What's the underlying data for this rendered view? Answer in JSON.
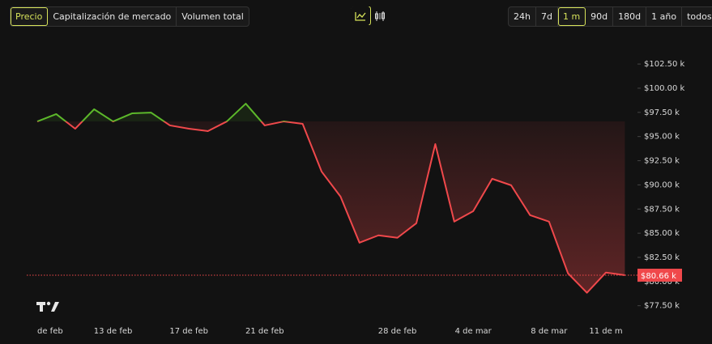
{
  "ui": {
    "tabs": [
      "Precio",
      "Capitalización de mercado",
      "Volumen total"
    ],
    "ranges": [
      "24h",
      "7d",
      "1 m",
      "90d",
      "180d",
      "1 año",
      "todos"
    ]
  },
  "chart_data": {
    "type": "line",
    "categories": [
      "de feb",
      null,
      null,
      null,
      "13 de feb",
      null,
      null,
      null,
      "17 de feb",
      null,
      null,
      null,
      "21 de feb",
      null,
      null,
      null,
      null,
      null,
      null,
      "28 de feb",
      null,
      null,
      null,
      "4 de mar",
      null,
      null,
      null,
      "8 de mar",
      null,
      null,
      "11 de m",
      null
    ],
    "values": [
      96560,
      97320,
      95810,
      97820,
      96560,
      97400,
      97480,
      96150,
      95810,
      95560,
      96560,
      98400,
      96150,
      96560,
      96310,
      91380,
      88790,
      84020,
      84780,
      84530,
      86030,
      94220,
      86200,
      87280,
      90630,
      89960,
      86870,
      86200,
      80850,
      78840,
      80930,
      80660
    ],
    "value_labels": [
      null,
      null,
      null,
      null,
      null,
      null,
      null,
      null,
      null,
      null,
      null,
      null,
      null,
      null,
      null,
      null,
      null,
      null,
      null,
      null,
      null,
      null,
      null,
      null,
      null,
      null,
      null,
      null,
      null,
      null,
      null,
      "$80.66 k"
    ],
    "up_color": "#5cb82a",
    "down_color": "#f0484b",
    "ylim": [
      75800,
      104100
    ],
    "yticks": [
      {
        "value": 77500,
        "label": "$77.50 k"
      },
      {
        "value": 80000,
        "label": "$80.00 k"
      },
      {
        "value": 82500,
        "label": "$82.50 k"
      },
      {
        "value": 85000,
        "label": "$85.00 k"
      },
      {
        "value": 87500,
        "label": "$87.50 k"
      },
      {
        "value": 90000,
        "label": "$90.00 k"
      },
      {
        "value": 92500,
        "label": "$92.50 k"
      },
      {
        "value": 95000,
        "label": "$95.00 k"
      },
      {
        "value": 97500,
        "label": "$97.50 k"
      },
      {
        "value": 100000,
        "label": "$100.00 k"
      },
      {
        "value": 102500,
        "label": "$102.50 k"
      }
    ]
  }
}
